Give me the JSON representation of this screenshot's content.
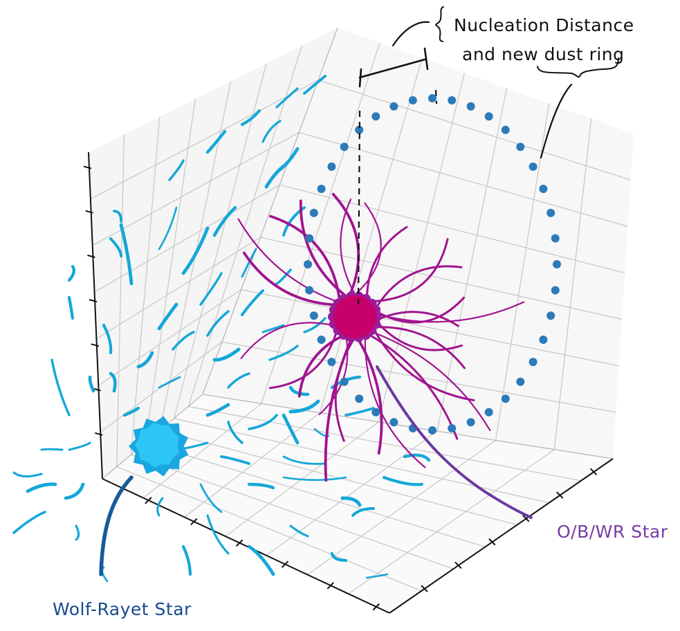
{
  "annotations": {
    "nucleation_line1": "Nucleation Distance",
    "nucleation_line2": "and new dust ring",
    "ob_star": "O/B/WR Star",
    "wr_star": "Wolf-Rayet Star"
  },
  "colors": {
    "wr_wind": "#14a7d8",
    "wr_star_fill": "#2bc6f5",
    "wr_star_edge": "#1aa6e0",
    "ob_wind": "#a0148f",
    "ob_star": "#c8006a",
    "ob_star_edge": "#9b1d9a",
    "dust_ring": "#2b7bba",
    "ob_label": "#7a3aa6",
    "wr_label": "#174a8c",
    "wr_pointer": "#175a9a",
    "ob_pointer": "#6a3aa0",
    "pane": "#ececec",
    "grid": "#c9c9c9"
  },
  "icons": [
    "wolf-rayet-star-icon",
    "ob-star-icon",
    "dust-ring-icon"
  ]
}
